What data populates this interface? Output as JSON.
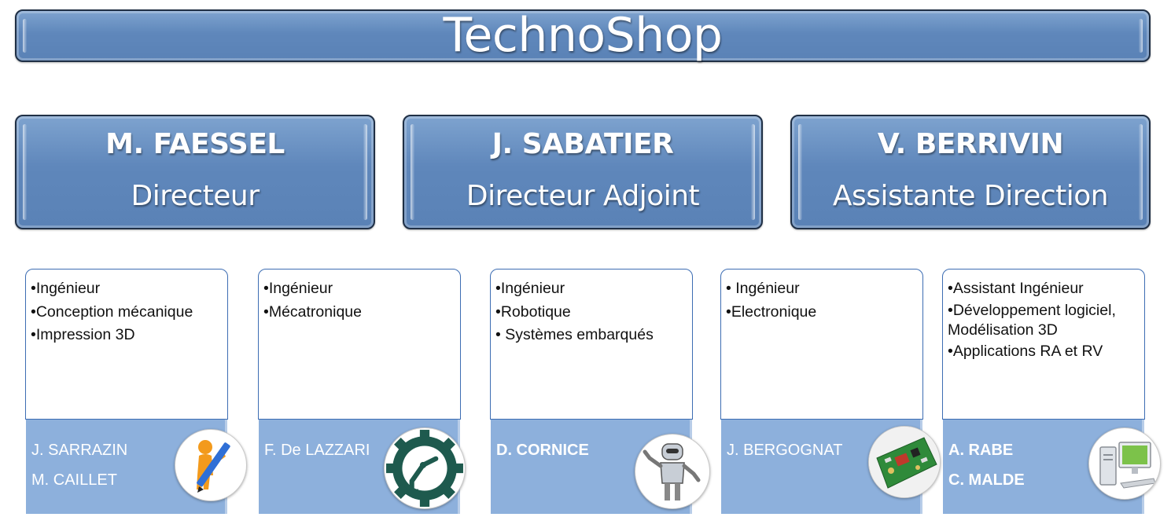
{
  "title": "TechnoShop",
  "heads": [
    {
      "name": "M. FAESSEL",
      "role": "Directeur"
    },
    {
      "name": "J. SABATIER",
      "role": "Directeur Adjoint"
    },
    {
      "name": "V. BERRIVIN",
      "role": "Assistante Direction"
    }
  ],
  "teams": [
    {
      "items": [
        "•Ingénieur",
        "•Conception mécanique",
        "•Impression 3D"
      ],
      "members": [
        "J. SARRAZIN",
        "M. CAILLET"
      ],
      "icon": "pencil-figure-icon"
    },
    {
      "items": [
        "•Ingénieur",
        "•Mécatronique"
      ],
      "members": [
        "F. De LAZZARI"
      ],
      "icon": "robot-arm-gear-icon"
    },
    {
      "items": [
        "•Ingénieur",
        "•Robotique",
        "• Systèmes embarqués"
      ],
      "members": [
        "D. CORNICE"
      ],
      "icon": "robot-icon"
    },
    {
      "items": [
        "• Ingénieur",
        "•Electronique"
      ],
      "members": [
        "J. BERGOGNAT"
      ],
      "icon": "circuit-board-icon"
    },
    {
      "items": [
        "•Assistant Ingénieur",
        "•Développement logiciel,",
        "Modélisation 3D",
        "•Applications RA et RV"
      ],
      "members": [
        "A. RABE",
        "C. MALDE"
      ],
      "icon": "computer-icon"
    }
  ]
}
